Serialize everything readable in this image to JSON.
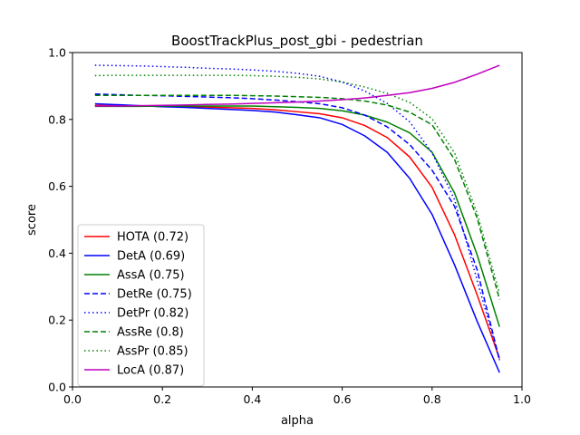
{
  "chart_data": {
    "type": "line",
    "title": "BoostTrackPlus_post_gbi - pedestrian",
    "xlabel": "alpha",
    "ylabel": "score",
    "xlim": [
      0.0,
      1.0
    ],
    "ylim": [
      0.0,
      1.0
    ],
    "xticks": [
      "0.0",
      "0.2",
      "0.4",
      "0.6",
      "0.8",
      "1.0"
    ],
    "yticks": [
      "0.0",
      "0.2",
      "0.4",
      "0.6",
      "0.8",
      "1.0"
    ],
    "grid": false,
    "legend_position": "lower-left",
    "x": [
      0.05,
      0.1,
      0.15,
      0.2,
      0.25,
      0.3,
      0.35,
      0.4,
      0.45,
      0.5,
      0.55,
      0.6,
      0.65,
      0.7,
      0.75,
      0.8,
      0.85,
      0.9,
      0.95
    ],
    "series": [
      {
        "name": "HOTA (0.72)",
        "color": "#ff0000",
        "style": "solid",
        "values": [
          0.842,
          0.841,
          0.84,
          0.839,
          0.838,
          0.837,
          0.835,
          0.833,
          0.829,
          0.823,
          0.817,
          0.805,
          0.782,
          0.746,
          0.688,
          0.597,
          0.455,
          0.276,
          0.085
        ]
      },
      {
        "name": "DetA (0.69)",
        "color": "#0000ff",
        "style": "solid",
        "values": [
          0.847,
          0.844,
          0.841,
          0.838,
          0.836,
          0.833,
          0.83,
          0.827,
          0.822,
          0.814,
          0.805,
          0.785,
          0.751,
          0.702,
          0.624,
          0.516,
          0.365,
          0.197,
          0.043
        ]
      },
      {
        "name": "AssA (0.75)",
        "color": "#008000",
        "style": "solid",
        "values": [
          0.839,
          0.839,
          0.839,
          0.84,
          0.84,
          0.84,
          0.84,
          0.84,
          0.838,
          0.836,
          0.833,
          0.826,
          0.813,
          0.792,
          0.76,
          0.702,
          0.58,
          0.396,
          0.18
        ]
      },
      {
        "name": "DetRe (0.75)",
        "color": "#0000ff",
        "style": "dashed",
        "values": [
          0.876,
          0.874,
          0.872,
          0.871,
          0.869,
          0.867,
          0.865,
          0.862,
          0.858,
          0.853,
          0.847,
          0.835,
          0.813,
          0.778,
          0.725,
          0.648,
          0.54,
          0.351,
          0.08
        ]
      },
      {
        "name": "DetPr (0.82)",
        "color": "#0000ff",
        "style": "dotted",
        "values": [
          0.962,
          0.961,
          0.96,
          0.958,
          0.956,
          0.953,
          0.951,
          0.948,
          0.944,
          0.938,
          0.929,
          0.912,
          0.885,
          0.848,
          0.793,
          0.7,
          0.56,
          0.32,
          0.08
        ]
      },
      {
        "name": "AssRe (0.8)",
        "color": "#008000",
        "style": "dashed",
        "values": [
          0.872,
          0.872,
          0.872,
          0.872,
          0.872,
          0.872,
          0.872,
          0.871,
          0.87,
          0.868,
          0.866,
          0.862,
          0.855,
          0.843,
          0.822,
          0.784,
          0.68,
          0.506,
          0.262
        ]
      },
      {
        "name": "AssPr (0.85)",
        "color": "#008000",
        "style": "dotted",
        "values": [
          0.931,
          0.932,
          0.932,
          0.932,
          0.932,
          0.932,
          0.932,
          0.931,
          0.929,
          0.926,
          0.921,
          0.912,
          0.897,
          0.878,
          0.851,
          0.802,
          0.7,
          0.52,
          0.28
        ]
      },
      {
        "name": "LocA (0.87)",
        "color": "#bf00bf",
        "style": "solid",
        "values": [
          0.84,
          0.84,
          0.841,
          0.842,
          0.843,
          0.845,
          0.846,
          0.848,
          0.85,
          0.852,
          0.855,
          0.859,
          0.864,
          0.872,
          0.88,
          0.893,
          0.911,
          0.935,
          0.962
        ]
      }
    ]
  }
}
